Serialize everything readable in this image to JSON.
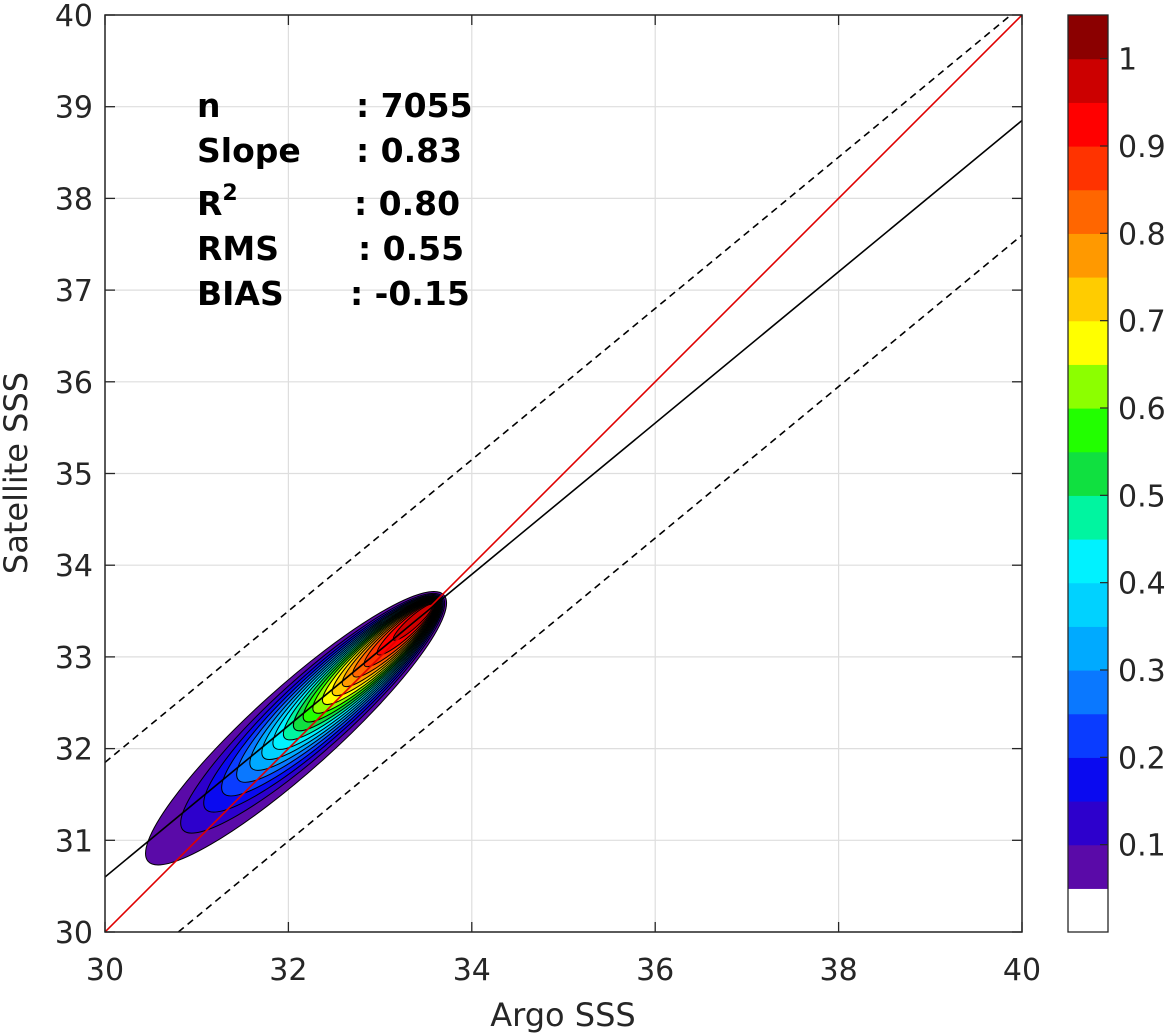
{
  "chart_data": {
    "type": "contour",
    "xlabel": "Argo SSS",
    "ylabel": "Satellite SSS",
    "xlim": [
      30,
      40
    ],
    "ylim": [
      30,
      40
    ],
    "xticks": [
      "30",
      "32",
      "34",
      "36",
      "38",
      "40"
    ],
    "yticks": [
      "30",
      "31",
      "32",
      "33",
      "34",
      "35",
      "36",
      "37",
      "38",
      "39",
      "40"
    ],
    "grid": true,
    "lines": [
      {
        "name": "identity",
        "color": "#e00000",
        "dash": "solid",
        "x": [
          30,
          40
        ],
        "y": [
          30,
          40
        ]
      },
      {
        "name": "fit",
        "color": "#000000",
        "dash": "solid",
        "x": [
          30,
          40
        ],
        "y": [
          30.6,
          38.85
        ]
      },
      {
        "name": "upper-bound",
        "color": "#000000",
        "dash": "dashed",
        "x": [
          30,
          40
        ],
        "y": [
          31.85,
          40.1
        ]
      },
      {
        "name": "lower-bound",
        "color": "#000000",
        "dash": "dashed",
        "x": [
          30.8,
          40
        ],
        "y": [
          30,
          37.6
        ]
      }
    ],
    "density_center": [
      33.55,
      33.55
    ],
    "density_peak": 1.0,
    "contour_levels": [
      0.05,
      0.1,
      0.15,
      0.2,
      0.25,
      0.3,
      0.35,
      0.4,
      0.45,
      0.5,
      0.55,
      0.6,
      0.65,
      0.7,
      0.75,
      0.8,
      0.85,
      0.9,
      0.95
    ],
    "colorbar": {
      "ticks": [
        "0.1",
        "0.2",
        "0.3",
        "0.4",
        "0.5",
        "0.6",
        "0.7",
        "0.8",
        "0.9",
        "1"
      ],
      "tick_values": [
        0.1,
        0.2,
        0.3,
        0.4,
        0.5,
        0.6,
        0.7,
        0.8,
        0.9,
        1.0
      ],
      "range": [
        0,
        1
      ],
      "colors": [
        "#ffffff",
        "#5a0aa8",
        "#2d00cc",
        "#0a0af0",
        "#0a3cff",
        "#0a78ff",
        "#00aaff",
        "#00d2ff",
        "#00f2ff",
        "#00f5a0",
        "#10e040",
        "#22ff00",
        "#8cff00",
        "#ffff00",
        "#ffcc00",
        "#ff9900",
        "#ff6600",
        "#ff3300",
        "#ff0000",
        "#cc0000",
        "#8b0000"
      ]
    }
  },
  "stats": [
    {
      "label": "n",
      "value": ": 7055"
    },
    {
      "label": "Slope",
      "value": ": 0.83"
    },
    {
      "label": "R",
      "sup": "2",
      "value": ": 0.80"
    },
    {
      "label": "RMS",
      "value": ": 0.55"
    },
    {
      "label": "BIAS",
      "value": ": -0.15"
    }
  ]
}
